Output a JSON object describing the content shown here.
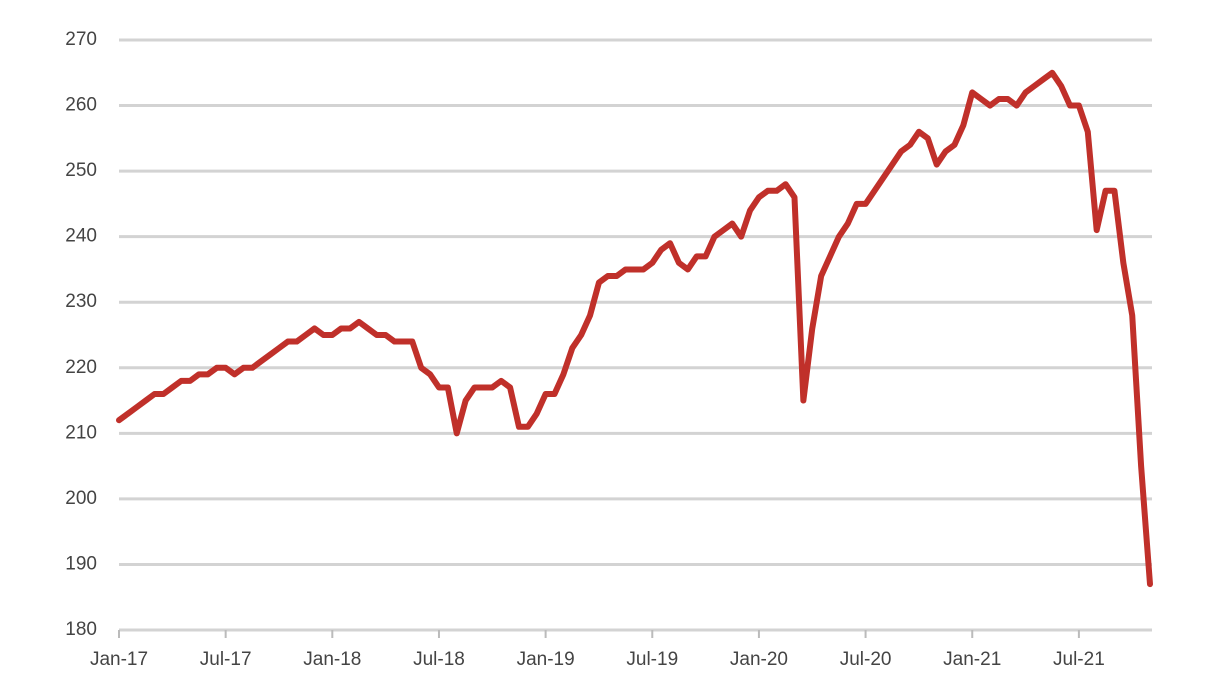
{
  "chart_data": {
    "type": "line",
    "categories": [
      "Jan-17",
      null,
      null,
      null,
      null,
      null,
      null,
      null,
      null,
      null,
      null,
      null,
      "Jul-17",
      null,
      null,
      null,
      null,
      null,
      null,
      null,
      null,
      null,
      null,
      null,
      "Jan-18",
      null,
      null,
      null,
      null,
      null,
      null,
      null,
      null,
      null,
      null,
      null,
      "Jul-18",
      null,
      null,
      null,
      null,
      null,
      null,
      null,
      null,
      null,
      null,
      null,
      "Jan-19",
      null,
      null,
      null,
      null,
      null,
      null,
      null,
      null,
      null,
      null,
      null,
      "Jul-19",
      null,
      null,
      null,
      null,
      null,
      null,
      null,
      null,
      null,
      null,
      null,
      "Jan-20",
      null,
      null,
      null,
      null,
      null,
      null,
      null,
      null,
      null,
      null,
      null,
      "Jul-20",
      null,
      null,
      null,
      null,
      null,
      null,
      null,
      null,
      null,
      null,
      null,
      "Jan-21",
      null,
      null,
      null,
      null,
      null,
      null,
      null,
      null,
      null,
      null,
      null,
      "Jul-21",
      null,
      null,
      null,
      null,
      null,
      null,
      null,
      null
    ],
    "values": [
      212,
      213,
      214,
      215,
      216,
      216,
      217,
      218,
      218,
      219,
      219,
      220,
      220,
      219,
      220,
      220,
      221,
      222,
      223,
      224,
      224,
      225,
      226,
      225,
      225,
      226,
      226,
      227,
      226,
      225,
      225,
      224,
      224,
      224,
      220,
      219,
      217,
      217,
      210,
      215,
      217,
      217,
      217,
      218,
      217,
      211,
      211,
      213,
      216,
      216,
      219,
      223,
      225,
      228,
      233,
      234,
      234,
      235,
      235,
      235,
      236,
      238,
      239,
      236,
      235,
      237,
      237,
      240,
      241,
      242,
      240,
      244,
      246,
      247,
      247,
      248,
      246,
      215,
      226,
      234,
      237,
      240,
      242,
      245,
      245,
      247,
      249,
      251,
      253,
      254,
      256,
      255,
      251,
      253,
      254,
      257,
      262,
      261,
      260,
      261,
      261,
      260,
      262,
      263,
      264,
      265,
      263,
      260,
      260,
      256,
      241,
      247,
      247,
      236,
      228,
      205,
      187
    ],
    "color": "#c0302a",
    "ylim": [
      180,
      270
    ],
    "yticks": [
      180,
      190,
      200,
      210,
      220,
      230,
      240,
      250,
      260,
      270
    ],
    "grid": true
  }
}
